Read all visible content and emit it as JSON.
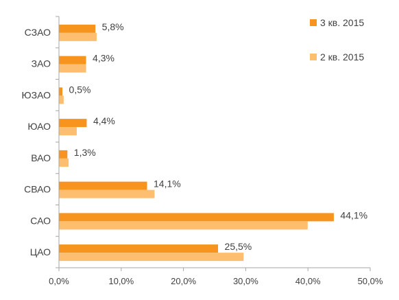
{
  "chart_data": {
    "type": "bar",
    "orientation": "horizontal",
    "categories": [
      "СЗАО",
      "ЗАО",
      "ЮЗАО",
      "ЮАО",
      "ВАО",
      "СВАО",
      "САО",
      "ЦАО"
    ],
    "series": [
      {
        "name": "3 кв. 2015",
        "color": "#F7941D",
        "values": [
          5.8,
          4.3,
          0.5,
          4.4,
          1.3,
          14.1,
          44.1,
          25.5
        ],
        "labels": [
          "5,8%",
          "4,3%",
          "0,5%",
          "4,4%",
          "1,3%",
          "14,1%",
          "44,1%",
          "25,5%"
        ]
      },
      {
        "name": "2 кв. 2015",
        "color": "#FDBE6F",
        "values": [
          6.0,
          4.3,
          0.7,
          2.8,
          1.5,
          15.3,
          39.9,
          29.6
        ]
      }
    ],
    "xlim": [
      0,
      50
    ],
    "xticks": [
      0,
      10,
      20,
      30,
      40,
      50
    ],
    "xtick_labels": [
      "0,0%",
      "10,0%",
      "20,0%",
      "30,0%",
      "40,0%",
      "50,0%"
    ],
    "legend_position": "top-right",
    "grid": false
  }
}
